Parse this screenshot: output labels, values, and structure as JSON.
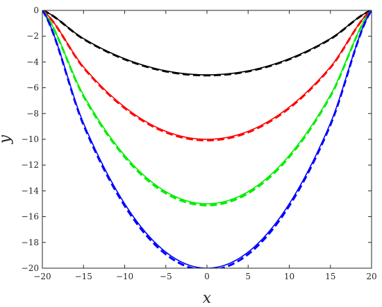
{
  "chart_data": {
    "type": "line",
    "title": "",
    "xlabel": "x",
    "ylabel": "y",
    "xlim": [
      -20,
      20
    ],
    "ylim": [
      -20,
      0
    ],
    "xticks": [
      -20,
      -15,
      -10,
      -5,
      0,
      5,
      10,
      15,
      20
    ],
    "yticks": [
      0,
      -2,
      -4,
      -6,
      -8,
      -10,
      -12,
      -14,
      -16,
      -18,
      -20
    ],
    "xtick_labels": [
      "−20",
      "−15",
      "−10",
      "−5",
      "0",
      "5",
      "10",
      "15",
      "20"
    ],
    "ytick_labels": [
      "0",
      "−2",
      "−4",
      "−6",
      "−8",
      "−10",
      "−12",
      "−14",
      "−16",
      "−18",
      "−20"
    ],
    "grid": false,
    "legend": "none",
    "x": [
      -20,
      -15,
      -10,
      -5,
      0,
      5,
      10,
      15,
      20
    ],
    "series": [
      {
        "color": "#000000",
        "style": "solid",
        "values": [
          0,
          -2.19,
          -3.75,
          -4.69,
          -5,
          -4.69,
          -3.75,
          -2.19,
          0
        ]
      },
      {
        "color": "#000000",
        "style": "dashed",
        "values": [
          0,
          -2.22,
          -3.79,
          -4.73,
          -5.04,
          -4.73,
          -3.79,
          -2.22,
          0
        ]
      },
      {
        "color": "#ff0000",
        "style": "solid",
        "values": [
          0,
          -4.38,
          -7.5,
          -9.38,
          -10,
          -9.38,
          -7.5,
          -4.38,
          0
        ]
      },
      {
        "color": "#ff0000",
        "style": "dashed",
        "values": [
          0,
          -4.44,
          -7.58,
          -9.46,
          -10.08,
          -9.46,
          -7.58,
          -4.44,
          0
        ]
      },
      {
        "color": "#00ee00",
        "style": "solid",
        "values": [
          0,
          -6.56,
          -11.25,
          -14.06,
          -15,
          -14.06,
          -11.25,
          -6.56,
          0
        ]
      },
      {
        "color": "#00ee00",
        "style": "dashed",
        "values": [
          0,
          -6.66,
          -11.37,
          -14.19,
          -15.12,
          -14.19,
          -11.37,
          -6.66,
          0
        ]
      },
      {
        "color": "#0000ff",
        "style": "solid",
        "values": [
          0,
          -8.75,
          -15,
          -18.75,
          -20,
          -18.75,
          -15,
          -8.75,
          0
        ]
      },
      {
        "color": "#0000ff",
        "style": "dashed",
        "values": [
          0,
          -8.88,
          -15.16,
          -18.92,
          -20.16,
          -18.92,
          -15.16,
          -8.88,
          0
        ]
      }
    ]
  }
}
